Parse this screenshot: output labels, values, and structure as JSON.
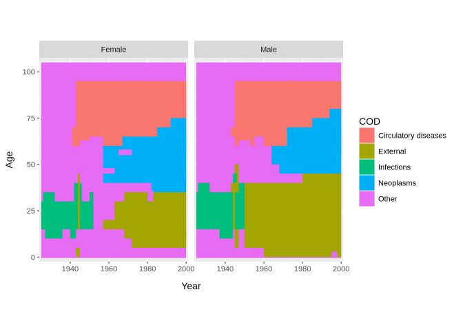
{
  "chart_data": {
    "type": "heatmap",
    "xlabel": "Year",
    "ylabel": "Age",
    "xlim": [
      1924,
      2001
    ],
    "ylim": [
      -2.5,
      107.5
    ],
    "x_ticks": [
      1940,
      1960,
      1980,
      2000
    ],
    "y_ticks": [
      0,
      25,
      50,
      75,
      100
    ],
    "x_tick_labels": [
      "1940",
      "1960",
      "1980",
      "2000"
    ],
    "y_tick_labels": [
      "0",
      "25",
      "50",
      "75",
      "100"
    ],
    "grid": true,
    "legend": {
      "title": "COD",
      "position": "right",
      "entries": [
        {
          "key": "circ",
          "label": "Circulatory diseases",
          "color": "#F8766D"
        },
        {
          "key": "ext",
          "label": "External",
          "color": "#A3A500"
        },
        {
          "key": "inf",
          "label": "Infections",
          "color": "#00BF7D"
        },
        {
          "key": "neo",
          "label": "Neoplasms",
          "color": "#00B0F6"
        },
        {
          "key": "oth",
          "label": "Other",
          "color": "#E76BF3"
        }
      ]
    },
    "panels": [
      {
        "label": "Female",
        "year_range": [
          1925,
          2000
        ],
        "age_range": [
          -0.5,
          105
        ],
        "default": "oth",
        "regions": [
          {
            "cod": "circ",
            "x0": 1943,
            "x1": 2000,
            "y0": 60,
            "y1": 95
          },
          {
            "cod": "circ",
            "x0": 1941,
            "x1": 1945,
            "y0": 60,
            "y1": 70
          },
          {
            "cod": "circ",
            "x0": 1950,
            "x1": 1955,
            "y0": 80,
            "y1": 85
          },
          {
            "cod": "circ",
            "x0": 1955,
            "x1": 1962,
            "y0": 85,
            "y1": 90
          },
          {
            "cod": "circ",
            "x0": 1968,
            "x1": 1977,
            "y0": 90,
            "y1": 95
          },
          {
            "cod": "circ",
            "x0": 1993,
            "x1": 2000,
            "y0": 75,
            "y1": 85
          },
          {
            "cod": "oth",
            "x0": 1945,
            "x1": 1952,
            "y0": 55,
            "y1": 63
          },
          {
            "cod": "oth",
            "x0": 1950,
            "x1": 1957,
            "y0": 60,
            "y1": 65
          },
          {
            "cod": "neo",
            "x0": 1957,
            "x1": 2000,
            "y0": 40,
            "y1": 60
          },
          {
            "cod": "neo",
            "x0": 1967,
            "x1": 2000,
            "y0": 55,
            "y1": 65
          },
          {
            "cod": "neo",
            "x0": 1985,
            "x1": 2000,
            "y0": 60,
            "y1": 70
          },
          {
            "cod": "neo",
            "x0": 1992,
            "x1": 2000,
            "y0": 70,
            "y1": 75
          },
          {
            "cod": "neo",
            "x0": 1982,
            "x1": 2000,
            "y0": 35,
            "y1": 45
          },
          {
            "cod": "oth",
            "x0": 1957,
            "x1": 1963,
            "y0": 45,
            "y1": 48
          },
          {
            "cod": "oth",
            "x0": 1965,
            "x1": 1972,
            "y0": 55,
            "y1": 58
          },
          {
            "cod": "ext",
            "x0": 1957,
            "x1": 1966,
            "y0": 15,
            "y1": 20
          },
          {
            "cod": "ext",
            "x0": 1963,
            "x1": 1972,
            "y0": 15,
            "y1": 30
          },
          {
            "cod": "ext",
            "x0": 1968,
            "x1": 2000,
            "y0": 10,
            "y1": 35
          },
          {
            "cod": "ext",
            "x0": 1972,
            "x1": 1996,
            "y0": 5,
            "y1": 15
          },
          {
            "cod": "ext",
            "x0": 1996,
            "x1": 2000,
            "y0": 5,
            "y1": 10
          },
          {
            "cod": "ext",
            "x0": 1988,
            "x1": 2000,
            "y0": 10,
            "y1": 15
          },
          {
            "cod": "oth",
            "x0": 1980,
            "x1": 1983,
            "y0": 30,
            "y1": 36
          },
          {
            "cod": "ext",
            "x0": 1943,
            "x1": 1945,
            "y0": 0,
            "y1": 5
          },
          {
            "cod": "inf",
            "x0": 1925,
            "x1": 1952,
            "y0": 15,
            "y1": 30
          },
          {
            "cod": "inf",
            "x0": 1926,
            "x1": 1932,
            "y0": 30,
            "y1": 35
          },
          {
            "cod": "inf",
            "x0": 1942,
            "x1": 1946,
            "y0": 30,
            "y1": 40
          },
          {
            "cod": "inf",
            "x0": 1927,
            "x1": 1936,
            "y0": 10,
            "y1": 15
          },
          {
            "cod": "inf",
            "x0": 1940,
            "x1": 1943,
            "y0": 10,
            "y1": 15
          },
          {
            "cod": "inf",
            "x0": 1950,
            "x1": 1952,
            "y0": 30,
            "y1": 35
          },
          {
            "cod": "ext",
            "x0": 1944,
            "x1": 1945,
            "y0": 15,
            "y1": 45
          }
        ]
      },
      {
        "label": "Male",
        "year_range": [
          1925,
          2000
        ],
        "age_range": [
          -0.5,
          105
        ],
        "default": "oth",
        "regions": [
          {
            "cod": "circ",
            "x0": 1945,
            "x1": 2000,
            "y0": 60,
            "y1": 95
          },
          {
            "cod": "circ",
            "x0": 1943,
            "x1": 1946,
            "y0": 65,
            "y1": 70
          },
          {
            "cod": "circ",
            "x0": 1952,
            "x1": 1957,
            "y0": 80,
            "y1": 85
          },
          {
            "cod": "circ",
            "x0": 1957,
            "x1": 1964,
            "y0": 85,
            "y1": 90
          },
          {
            "cod": "circ",
            "x0": 1971,
            "x1": 1978,
            "y0": 90,
            "y1": 95
          },
          {
            "cod": "circ",
            "x0": 1993,
            "x1": 2000,
            "y0": 75,
            "y1": 90
          },
          {
            "cod": "oth",
            "x0": 1947,
            "x1": 1953,
            "y0": 55,
            "y1": 63
          },
          {
            "cod": "oth",
            "x0": 1955,
            "x1": 1960,
            "y0": 60,
            "y1": 65
          },
          {
            "cod": "neo",
            "x0": 1964,
            "x1": 2000,
            "y0": 45,
            "y1": 60
          },
          {
            "cod": "neo",
            "x0": 1972,
            "x1": 2000,
            "y0": 55,
            "y1": 70
          },
          {
            "cod": "neo",
            "x0": 1985,
            "x1": 2000,
            "y0": 60,
            "y1": 75
          },
          {
            "cod": "neo",
            "x0": 1994,
            "x1": 2000,
            "y0": 75,
            "y1": 80
          },
          {
            "cod": "oth",
            "x0": 1964,
            "x1": 1968,
            "y0": 45,
            "y1": 50
          },
          {
            "cod": "ext",
            "x0": 1950,
            "x1": 2000,
            "y0": 5,
            "y1": 40
          },
          {
            "cod": "ext",
            "x0": 1960,
            "x1": 2000,
            "y0": 0,
            "y1": 5
          },
          {
            "cod": "ext",
            "x0": 1980,
            "x1": 2000,
            "y0": 40,
            "y1": 45
          },
          {
            "cod": "ext",
            "x0": 1998,
            "x1": 2000,
            "y0": 0,
            "y1": 45
          },
          {
            "cod": "ext",
            "x0": 1945,
            "x1": 1947,
            "y0": 5,
            "y1": 50
          },
          {
            "cod": "ext",
            "x0": 1943,
            "x1": 1945,
            "y0": 20,
            "y1": 40
          },
          {
            "cod": "oth",
            "x0": 1995,
            "x1": 1998,
            "y0": 0,
            "y1": 3
          },
          {
            "cod": "inf",
            "x0": 1925,
            "x1": 1950,
            "y0": 15,
            "y1": 35
          },
          {
            "cod": "inf",
            "x0": 1926,
            "x1": 1932,
            "y0": 35,
            "y1": 40
          },
          {
            "cod": "inf",
            "x0": 1937,
            "x1": 1944,
            "y0": 10,
            "y1": 15
          },
          {
            "cod": "inf",
            "x0": 1947,
            "x1": 1950,
            "y0": 35,
            "y1": 40
          },
          {
            "cod": "inf",
            "x0": 1944,
            "x1": 1946,
            "y0": 40,
            "y1": 45
          },
          {
            "cod": "ext",
            "x0": 1944,
            "x1": 1945,
            "y0": 15,
            "y1": 40
          }
        ]
      }
    ]
  }
}
